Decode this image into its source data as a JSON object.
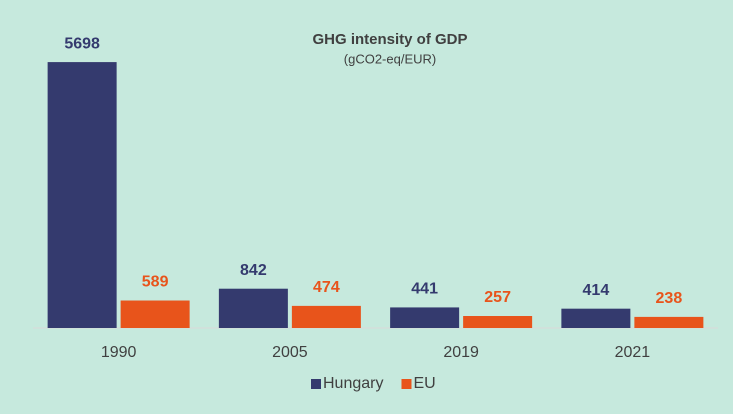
{
  "chart_data": {
    "type": "bar",
    "title": "GHG intensity of GDP",
    "subtitle": "(gCO2-eq/EUR)",
    "categories": [
      "1990",
      "2005",
      "2019",
      "2021"
    ],
    "series": [
      {
        "name": "Hungary",
        "color": "#343a6e",
        "values": [
          5698,
          842,
          441,
          414
        ]
      },
      {
        "name": "EU",
        "color": "#e8541b",
        "values": [
          589,
          474,
          257,
          238
        ]
      }
    ],
    "ylim": [
      0,
      6000
    ],
    "legend": "bottom"
  }
}
